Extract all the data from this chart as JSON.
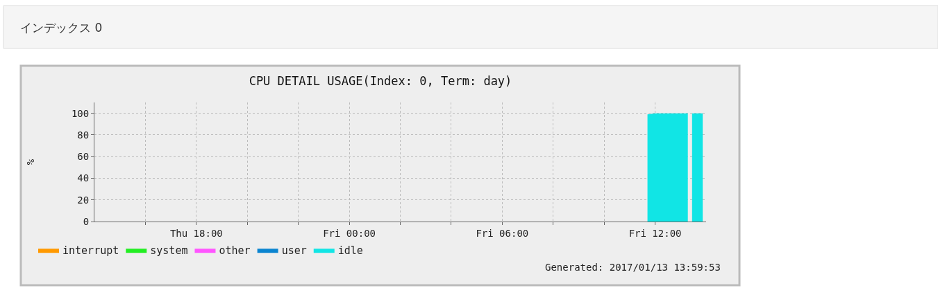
{
  "chart_data": {
    "type": "area",
    "title": "CPU DETAIL USAGE(Index: 0, Term: day)",
    "ylabel": "%",
    "annotations": [
      "インデックス 0",
      "Generated: 2017/01/13 13:59:53"
    ],
    "x": [
      "2017-01-13T11:42",
      "2017-01-13T12:00",
      "2017-01-13T13:17",
      "2017-01-13T13:22",
      "2017-01-13T13:27",
      "2017-01-13T13:52"
    ],
    "series": [
      {
        "name": "interrupt",
        "color": "#ff9900",
        "values": [
          null,
          null,
          null,
          null,
          null,
          null
        ]
      },
      {
        "name": "system",
        "color": "#22ee22",
        "values": [
          null,
          null,
          null,
          null,
          null,
          null
        ]
      },
      {
        "name": "other",
        "color": "#ff55ff",
        "values": [
          null,
          null,
          null,
          null,
          null,
          null
        ]
      },
      {
        "name": "user",
        "color": "#0a84d0",
        "values": [
          null,
          null,
          null,
          null,
          null,
          null
        ]
      },
      {
        "name": "idle",
        "color": "#11e5e5",
        "values": [
          99,
          100,
          100,
          null,
          100,
          100
        ]
      }
    ],
    "xlim": [
      "2017-01-12T14:00",
      "2017-01-13T14:00"
    ],
    "xticks": [
      {
        "value": "2017-01-12T16:00",
        "label": null
      },
      {
        "value": "2017-01-12T18:00",
        "label": "Thu 18:00"
      },
      {
        "value": "2017-01-12T20:00",
        "label": null
      },
      {
        "value": "2017-01-12T22:00",
        "label": null
      },
      {
        "value": "2017-01-13T00:00",
        "label": "Fri 00:00"
      },
      {
        "value": "2017-01-13T02:00",
        "label": null
      },
      {
        "value": "2017-01-13T04:00",
        "label": null
      },
      {
        "value": "2017-01-13T06:00",
        "label": "Fri 06:00"
      },
      {
        "value": "2017-01-13T08:00",
        "label": null
      },
      {
        "value": "2017-01-13T10:00",
        "label": null
      },
      {
        "value": "2017-01-13T12:00",
        "label": "Fri 12:00"
      }
    ],
    "ylim": [
      0,
      110
    ],
    "yticks": [
      0,
      20,
      40,
      60,
      80,
      100
    ],
    "grid": true,
    "legend": "bottom",
    "marker": "none"
  }
}
